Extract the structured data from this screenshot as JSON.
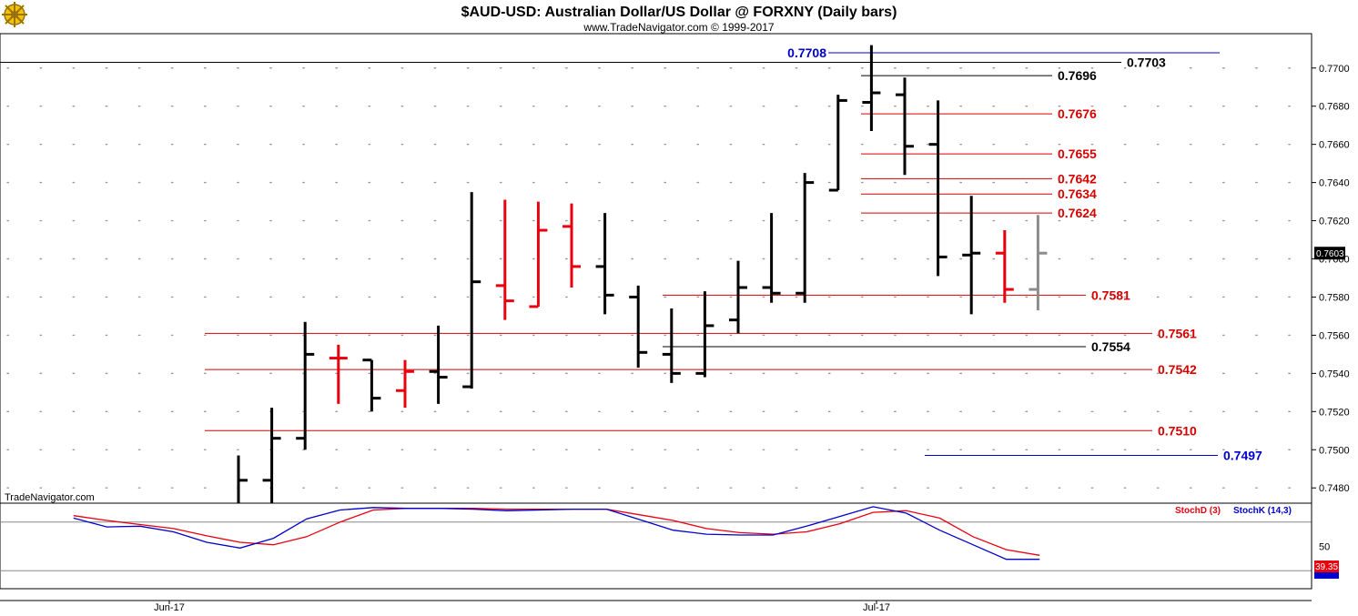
{
  "header": {
    "title": "$AUD-USD:  Australian Dollar/US Dollar @ FORXNY  (Daily bars)",
    "copyright": "www.TradeNavigator.com © 1999-2017",
    "watermark": "TradeNavigator.com",
    "logo_icon": "ship-wheel-logo-icon"
  },
  "colors": {
    "background": "#ffffff",
    "up_bar": "#000000",
    "down_bar": "#e8000f",
    "current_bar": "#8c8c8c",
    "red_level": "#d40000",
    "blue_level": "#0000cc",
    "black_level": "#000000",
    "stoch_d": "#e8000f",
    "stoch_k": "#0000cc",
    "grid_dot": "#9a9a9a"
  },
  "chart_data": {
    "type": "ohlc",
    "ylim": [
      0.7472,
      0.7718
    ],
    "y_ticks": [
      "0.7700",
      "0.7680",
      "0.7660",
      "0.7640",
      "0.7620",
      "0.7600",
      "0.7580",
      "0.7560",
      "0.7540",
      "0.7520",
      "0.7500",
      "0.7480"
    ],
    "y_tick_values": [
      0.77,
      0.768,
      0.766,
      0.764,
      0.762,
      0.76,
      0.758,
      0.756,
      0.754,
      0.752,
      0.75,
      0.748
    ],
    "x_labels": [
      {
        "text": "Jun-17",
        "index": 0
      },
      {
        "text": "Jul-17",
        "index": 22
      }
    ],
    "last_price": "0.7603",
    "last_price_value": 0.7603,
    "bars": [
      {
        "o": null,
        "h": 0.7497,
        "l": 0.7472,
        "c": 0.7484,
        "color": "black"
      },
      {
        "o": 0.7484,
        "h": 0.7522,
        "l": 0.7472,
        "c": 0.7506,
        "color": "black"
      },
      {
        "o": 0.7506,
        "h": 0.7567,
        "l": 0.75,
        "c": 0.755,
        "color": "black"
      },
      {
        "o": 0.7548,
        "h": 0.7555,
        "l": 0.7524,
        "c": 0.7548,
        "color": "red"
      },
      {
        "o": 0.7547,
        "h": 0.7547,
        "l": 0.752,
        "c": 0.7527,
        "color": "black"
      },
      {
        "o": 0.7531,
        "h": 0.7547,
        "l": 0.7522,
        "c": 0.7541,
        "color": "red"
      },
      {
        "o": 0.7541,
        "h": 0.7565,
        "l": 0.7524,
        "c": 0.7538,
        "color": "black"
      },
      {
        "o": 0.7533,
        "h": 0.7635,
        "l": 0.7532,
        "c": 0.7588,
        "color": "black"
      },
      {
        "o": 0.7586,
        "h": 0.7631,
        "l": 0.7568,
        "c": 0.7578,
        "color": "red"
      },
      {
        "o": 0.7575,
        "h": 0.763,
        "l": 0.7575,
        "c": 0.7615,
        "color": "red"
      },
      {
        "o": 0.7617,
        "h": 0.7629,
        "l": 0.7585,
        "c": 0.7596,
        "color": "red"
      },
      {
        "o": 0.7596,
        "h": 0.7624,
        "l": 0.7571,
        "c": 0.7581,
        "color": "black"
      },
      {
        "o": 0.758,
        "h": 0.7586,
        "l": 0.7543,
        "c": 0.7551,
        "color": "black"
      },
      {
        "o": 0.755,
        "h": 0.7574,
        "l": 0.7535,
        "c": 0.754,
        "color": "black"
      },
      {
        "o": 0.754,
        "h": 0.7583,
        "l": 0.7538,
        "c": 0.7565,
        "color": "black"
      },
      {
        "o": 0.7568,
        "h": 0.7599,
        "l": 0.7561,
        "c": 0.7585,
        "color": "black"
      },
      {
        "o": 0.7585,
        "h": 0.7624,
        "l": 0.7577,
        "c": 0.7582,
        "color": "black"
      },
      {
        "o": 0.7582,
        "h": 0.7645,
        "l": 0.7577,
        "c": 0.764,
        "color": "black"
      },
      {
        "o": 0.7636,
        "h": 0.7686,
        "l": 0.7636,
        "c": 0.7683,
        "color": "black"
      },
      {
        "o": 0.7682,
        "h": 0.7712,
        "l": 0.7667,
        "c": 0.7687,
        "color": "black"
      },
      {
        "o": 0.7686,
        "h": 0.7695,
        "l": 0.7644,
        "c": 0.7659,
        "color": "black"
      },
      {
        "o": 0.766,
        "h": 0.7683,
        "l": 0.7591,
        "c": 0.7601,
        "color": "black"
      },
      {
        "o": 0.7602,
        "h": 0.7633,
        "l": 0.7571,
        "c": 0.7603,
        "color": "black"
      },
      {
        "o": 0.7603,
        "h": 0.7615,
        "l": 0.7577,
        "c": 0.7584,
        "color": "red"
      },
      {
        "o": 0.7584,
        "h": 0.7623,
        "l": 0.7573,
        "c": 0.7603,
        "color": "gray"
      }
    ],
    "levels": [
      {
        "label": "0.7708",
        "value": 0.7708,
        "color": "blue",
        "label_side": "left"
      },
      {
        "label": "0.7703",
        "value": 0.7703,
        "color": "black"
      },
      {
        "label": "0.7696",
        "value": 0.7696,
        "color": "black"
      },
      {
        "label": "0.7676",
        "value": 0.7676,
        "color": "red"
      },
      {
        "label": "0.7655",
        "value": 0.7655,
        "color": "red"
      },
      {
        "label": "0.7642",
        "value": 0.7642,
        "color": "red"
      },
      {
        "label": "0.7634",
        "value": 0.7634,
        "color": "red"
      },
      {
        "label": "0.7624",
        "value": 0.7624,
        "color": "red"
      },
      {
        "label": "0.7581",
        "value": 0.7581,
        "color": "red"
      },
      {
        "label": "0.7561",
        "value": 0.7561,
        "color": "red"
      },
      {
        "label": "0.7554",
        "value": 0.7554,
        "color": "black"
      },
      {
        "label": "0.7542",
        "value": 0.7542,
        "color": "red"
      },
      {
        "label": "0.7510",
        "value": 0.751,
        "color": "red"
      },
      {
        "label": "0.7497",
        "value": 0.7497,
        "color": "blue"
      }
    ],
    "stochastic": {
      "ylim": [
        0,
        100
      ],
      "tick_label": "50",
      "tick_value": 50,
      "reference_lines": [
        80,
        20
      ],
      "d_label": "StochD (3)",
      "k_label": "StochK (14,3)",
      "d_last": "39.35",
      "d_last_value": 39.35,
      "k_last_value": 34,
      "k_values": [
        null,
        null,
        85,
        74,
        75,
        68,
        55,
        48,
        60,
        84,
        95,
        98,
        97,
        97,
        96,
        94,
        95,
        96,
        96,
        83,
        70,
        65,
        64,
        64,
        75,
        87,
        99,
        91,
        70,
        52,
        34,
        34
      ],
      "d_values": [
        null,
        null,
        88,
        82,
        77,
        72,
        63,
        55,
        52,
        62,
        80,
        95,
        97,
        97,
        97,
        96,
        96,
        96,
        96,
        89,
        82,
        72,
        67,
        65,
        68,
        78,
        92,
        94,
        85,
        62,
        46,
        39
      ]
    }
  }
}
